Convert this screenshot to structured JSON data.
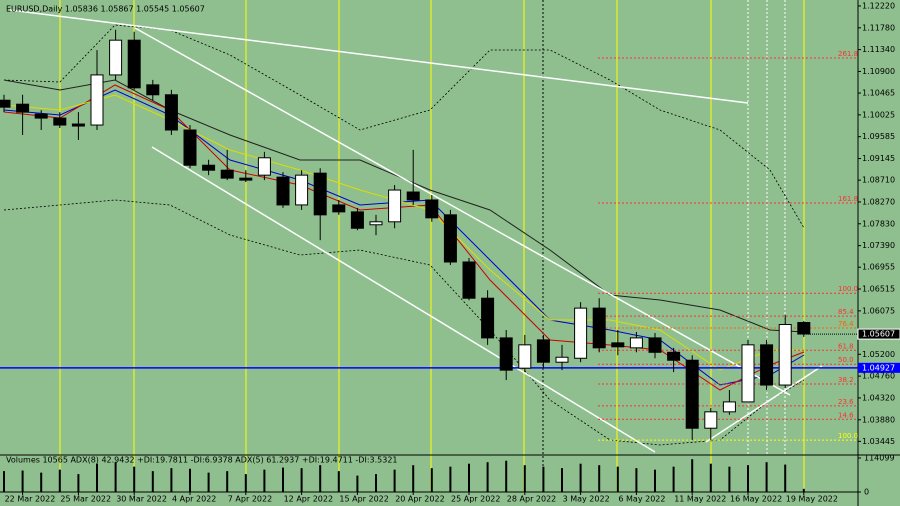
{
  "chart_data": {
    "type": "candlestick",
    "title": "EURUSD,Daily  1.05836 1.05867 1.05545 1.05607",
    "categories": [
      null,
      "22 Mar 2022",
      null,
      null,
      "25 Mar 2022",
      null,
      null,
      "30 Mar 2022",
      null,
      null,
      "4 Apr 2022",
      null,
      null,
      "7 Apr 2022",
      null,
      null,
      "12 Apr 2022",
      null,
      null,
      "15 Apr 2022",
      null,
      null,
      "20 Apr 2022",
      null,
      null,
      "25 Apr 2022",
      null,
      null,
      "28 Apr 2022",
      null,
      null,
      "3 May 2022",
      null,
      null,
      "6 May 2022",
      null,
      null,
      "11 May 2022",
      null,
      null,
      "16 May 2022",
      null,
      null,
      "19 May 2022"
    ],
    "open": [
      1.1032,
      1.1024,
      1.1004,
      1.0996,
      1.0984,
      1.0982,
      1.1083,
      1.1153,
      1.1063,
      1.1043,
      1.0972,
      1.0901,
      1.0891,
      1.0875,
      1.0881,
      1.0877,
      1.0821,
      1.0885,
      1.0821,
      1.0807,
      1.0781,
      1.0787,
      1.0847,
      1.0831,
      1.0801,
      1.0706,
      1.0633,
      1.0553,
      1.0492,
      1.0549,
      1.0504,
      1.0512,
      1.0613,
      1.0543,
      1.0533,
      1.0553,
      1.0524,
      1.0508,
      1.0371,
      1.0404,
      1.0424,
      1.0539,
      1.0458,
      1.0584
    ],
    "high": [
      1.1043,
      1.1043,
      1.1012,
      1.1008,
      1.1008,
      1.1133,
      1.1174,
      1.117,
      1.1073,
      1.1053,
      1.0982,
      1.0912,
      1.0932,
      1.0891,
      1.0928,
      1.0887,
      1.0891,
      1.0895,
      1.0831,
      1.0815,
      1.0801,
      1.0861,
      1.0932,
      1.0841,
      1.0811,
      1.0714,
      1.0649,
      1.0569,
      1.0559,
      1.0559,
      1.0539,
      1.0625,
      1.0633,
      1.0569,
      1.0565,
      1.0563,
      1.0533,
      1.0518,
      1.0412,
      1.0448,
      1.0549,
      1.0549,
      1.0599,
      1.0587
    ],
    "low": [
      1.1008,
      1.0962,
      1.0972,
      1.0976,
      1.0952,
      1.0972,
      1.1073,
      1.1053,
      1.1032,
      1.0962,
      1.0895,
      1.0881,
      1.0871,
      1.0867,
      1.0871,
      1.0815,
      1.0811,
      1.075,
      1.0801,
      1.077,
      1.076,
      1.0774,
      1.0821,
      1.0787,
      1.07,
      1.0629,
      1.0539,
      1.0468,
      1.0484,
      1.0492,
      1.0488,
      1.0504,
      1.0524,
      1.0518,
      1.0524,
      1.0512,
      1.0484,
      1.0347,
      1.0347,
      1.0398,
      1.0424,
      1.0448,
      1.0452,
      1.0555
    ],
    "close": [
      1.1018,
      1.1008,
      1.0996,
      1.0982,
      1.098,
      1.1083,
      1.1153,
      1.1057,
      1.1043,
      1.0972,
      1.0901,
      1.0891,
      1.0875,
      1.0871,
      1.0916,
      1.0821,
      1.0881,
      1.0801,
      1.0807,
      1.0774,
      1.0787,
      1.0851,
      1.0831,
      1.0795,
      1.0706,
      1.0633,
      1.0553,
      1.0488,
      1.0539,
      1.0504,
      1.0514,
      1.0613,
      1.0533,
      1.0535,
      1.0553,
      1.0524,
      1.0508,
      1.0371,
      1.0404,
      1.0424,
      1.0539,
      1.0458,
      1.058,
      1.0561
    ],
    "bull_color": "#ffffff",
    "bear_color": "#000000",
    "ylim": [
      1.0317,
      1.1234
    ],
    "yticks": [
      {
        "value": 1.1222,
        "label": "1.12220"
      },
      {
        "value": 1.1178,
        "label": "1.11780"
      },
      {
        "value": 1.1134,
        "label": "1.11340"
      },
      {
        "value": 1.109,
        "label": "1.10900"
      },
      {
        "value": 1.10465,
        "label": "1.10465"
      },
      {
        "value": 1.10025,
        "label": "1.10025"
      },
      {
        "value": 1.09585,
        "label": "1.09585"
      },
      {
        "value": 1.09145,
        "label": "1.09145"
      },
      {
        "value": 1.0871,
        "label": "1.08710"
      },
      {
        "value": 1.0827,
        "label": "1.08270"
      },
      {
        "value": 1.0783,
        "label": "1.07830"
      },
      {
        "value": 1.0739,
        "label": "1.07390"
      },
      {
        "value": 1.06955,
        "label": "1.06955"
      },
      {
        "value": 1.06515,
        "label": "1.06515"
      },
      {
        "value": 1.06075,
        "label": "1.06075"
      },
      {
        "value": 1.052,
        "label": "1.05200"
      },
      {
        "value": 1.0476,
        "label": "1.04760"
      },
      {
        "value": 1.0432,
        "label": "1.04320"
      },
      {
        "value": 1.0388,
        "label": "1.03880"
      },
      {
        "value": 1.03445,
        "label": "1.03445"
      }
    ],
    "last_price": {
      "value": 1.05607,
      "label": "1.05607"
    },
    "hline": {
      "value": 1.04927,
      "label": "1.04927",
      "color": "#0000ff"
    },
    "fib_levels": [
      {
        "label": "261.8",
        "value": 1.1117,
        "color": "#ff3030"
      },
      {
        "label": "161.8",
        "value": 1.0825,
        "color": "#ff3030"
      },
      {
        "label": "100.0",
        "value": 1.0643,
        "color": "#ff3030"
      },
      {
        "label": "85.4",
        "value": 1.0597,
        "color": "#ff3030"
      },
      {
        "label": "76.4",
        "value": 1.0573,
        "color": "#ff6000"
      },
      {
        "label": "61.8",
        "value": 1.0528,
        "color": "#ff3030"
      },
      {
        "label": "50.0",
        "value": 1.05,
        "color": "#ff3030"
      },
      {
        "label": "38.2",
        "value": 1.046,
        "color": "#ff3030"
      },
      {
        "label": "23.6",
        "value": 1.0416,
        "color": "#ff3030"
      },
      {
        "label": "14.6",
        "value": 1.0389,
        "color": "#ff3030"
      },
      {
        "label": "100.0",
        "value": 1.0347,
        "color": "#ffff00"
      }
    ],
    "volume": {
      "label": "Volumes 10565  ADX(8) 42.9432 +DI:19.7811 -DI:6.9378  ADX(5) 61.2937 +DI:19.4711 -DI:3.5321",
      "color": "#000000",
      "values": [
        70000,
        72000,
        65000,
        75000,
        60000,
        95000,
        100000,
        85000,
        70000,
        80000,
        78000,
        65000,
        70000,
        60000,
        75000,
        82000,
        80000,
        90000,
        70000,
        55000,
        60000,
        75000,
        90000,
        80000,
        85000,
        95000,
        100000,
        105000,
        90000,
        85000,
        80000,
        95000,
        90000,
        85000,
        80000,
        75000,
        85000,
        110000,
        95000,
        85000,
        90000,
        100000,
        92000,
        10565
      ],
      "ylim": [
        0,
        114099
      ],
      "yticks": [
        0,
        114099
      ]
    }
  }
}
